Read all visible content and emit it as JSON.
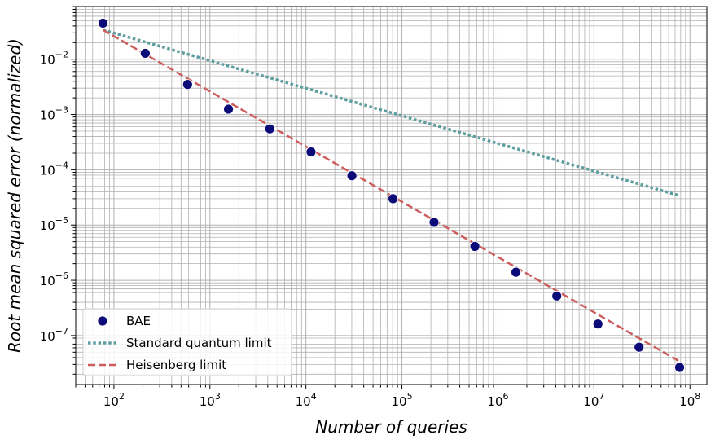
{
  "chart_data": {
    "type": "scatter",
    "xlabel": "Number of queries",
    "ylabel": "Root mean squared error (normalized)",
    "x_scale": "log",
    "y_scale": "log",
    "xlim": [
      40,
      150000000
    ],
    "ylim": [
      1.3e-08,
      0.09
    ],
    "x_ticks": [
      {
        "value": 100,
        "mant": "10",
        "exp": "2"
      },
      {
        "value": 1000,
        "mant": "10",
        "exp": "3"
      },
      {
        "value": 10000,
        "mant": "10",
        "exp": "4"
      },
      {
        "value": 100000,
        "mant": "10",
        "exp": "5"
      },
      {
        "value": 1000000,
        "mant": "10",
        "exp": "6"
      },
      {
        "value": 10000000,
        "mant": "10",
        "exp": "7"
      },
      {
        "value": 100000000,
        "mant": "10",
        "exp": "8"
      }
    ],
    "y_ticks": [
      {
        "value": 1e-07,
        "mant": "10",
        "exp": "−7"
      },
      {
        "value": 1e-06,
        "mant": "10",
        "exp": "−6"
      },
      {
        "value": 1e-05,
        "mant": "10",
        "exp": "−5"
      },
      {
        "value": 0.0001,
        "mant": "10",
        "exp": "−4"
      },
      {
        "value": 0.001,
        "mant": "10",
        "exp": "−3"
      },
      {
        "value": 0.01,
        "mant": "10",
        "exp": "−2"
      }
    ],
    "grid": true,
    "legend_position": "lower-left",
    "series": [
      {
        "name": "BAE",
        "kind": "scatter",
        "color": "#0a0a78",
        "x": [
          77,
          212,
          585,
          1560,
          4200,
          11300,
          30100,
          80700,
          216000,
          575000,
          1540000,
          4100000,
          11000000,
          29500000,
          78000000
        ],
        "y": [
          0.045,
          0.0128,
          0.0035,
          0.00125,
          0.00055,
          0.00021,
          7.8e-05,
          3e-05,
          1.12e-05,
          4.1e-06,
          1.4e-06,
          5.2e-07,
          1.62e-07,
          6.15e-08,
          2.65e-08
        ]
      },
      {
        "name": "Standard quantum limit",
        "kind": "line",
        "style": "dotted",
        "color": "#5f9ea0",
        "x": [
          77,
          78000000
        ],
        "y": [
          0.034,
          3.4e-05
        ]
      },
      {
        "name": "Heisenberg limit",
        "kind": "line",
        "style": "dashed",
        "color": "#cd5c5c",
        "x": [
          77,
          78000000
        ],
        "y": [
          0.034,
          3.4e-08
        ]
      }
    ]
  }
}
